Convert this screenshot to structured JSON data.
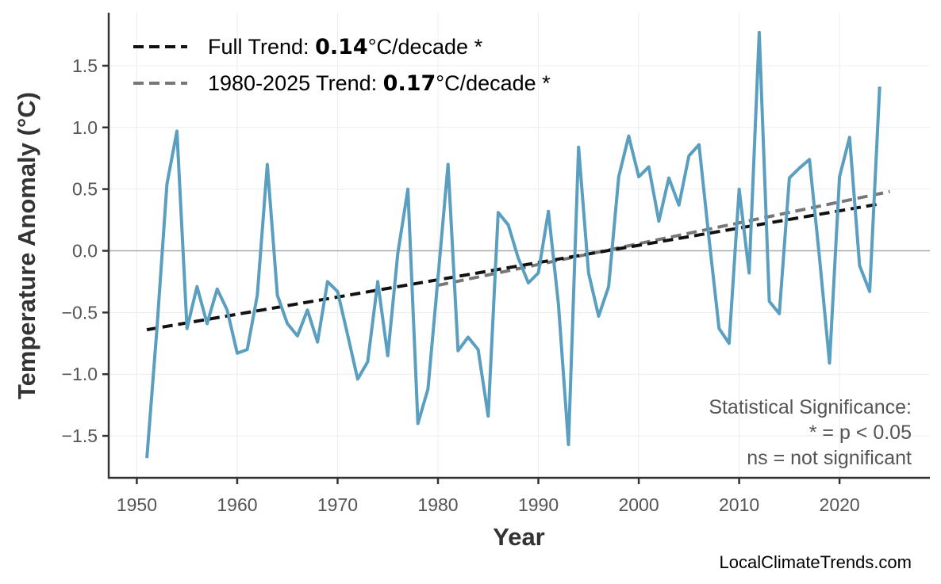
{
  "chart_data": {
    "type": "line",
    "xlabel": "Year",
    "ylabel": "Temperature Anomaly (°C)",
    "xlim": [
      1947.2,
      2029.0
    ],
    "ylim": [
      -1.84,
      1.93
    ],
    "grid": true,
    "legend_placement": "top-left",
    "x_ticks": [
      "1950",
      "1960",
      "1970",
      "1980",
      "1990",
      "2000",
      "2010",
      "2020"
    ],
    "y_ticks": [
      "1.5",
      "1.0",
      "0.5",
      "0.0",
      "−0.5",
      "−1.0",
      "−1.5"
    ],
    "colors": {
      "series": "#5a9fc0",
      "full_trend": "#111111",
      "recent_trend": "#777777",
      "zero_line": "#aaaaaa",
      "grid": "#ececec"
    },
    "series": [
      {
        "x": [
          1951,
          1952,
          1953,
          1954,
          1955,
          1956,
          1957,
          1958,
          1959,
          1960,
          1961,
          1962,
          1963,
          1964,
          1965,
          1966,
          1967,
          1968,
          1969,
          1970,
          1971,
          1972,
          1973,
          1974,
          1975,
          1976,
          1977,
          1978,
          1979,
          1980,
          1981,
          1982,
          1983,
          1984,
          1985,
          1986,
          1987,
          1988,
          1989,
          1990,
          1991,
          1992,
          1993,
          1994,
          1995,
          1996,
          1997,
          1998,
          1999,
          2000,
          2001,
          2002,
          2003,
          2004,
          2005,
          2006,
          2007,
          2008,
          2009,
          2010,
          2011,
          2012,
          2013,
          2014,
          2015,
          2016,
          2017,
          2018,
          2019,
          2020,
          2021,
          2022,
          2023,
          2024
        ],
        "values": [
          -1.68,
          -0.64,
          0.54,
          0.97,
          -0.63,
          -0.29,
          -0.59,
          -0.31,
          -0.48,
          -0.83,
          -0.8,
          -0.36,
          0.7,
          -0.36,
          -0.59,
          -0.69,
          -0.48,
          -0.74,
          -0.25,
          -0.33,
          -0.68,
          -1.04,
          -0.9,
          -0.25,
          -0.85,
          -0.02,
          0.5,
          -1.4,
          -1.12,
          -0.22,
          0.7,
          -0.81,
          -0.7,
          -0.8,
          -1.34,
          0.31,
          0.21,
          -0.06,
          -0.26,
          -0.18,
          0.32,
          -0.43,
          -1.57,
          0.84,
          -0.18,
          -0.53,
          -0.29,
          0.6,
          0.93,
          0.6,
          0.68,
          0.24,
          0.59,
          0.37,
          0.77,
          0.86,
          0.1,
          -0.63,
          -0.75,
          0.5,
          -0.18,
          1.77,
          -0.41,
          -0.51,
          0.59,
          0.67,
          0.74,
          -0.05,
          -0.91,
          0.6,
          0.92,
          -0.12,
          -0.33,
          1.33
        ]
      }
    ],
    "trends": [
      {
        "x": [
          1951,
          2024
        ],
        "values": [
          -0.64,
          0.38
        ],
        "style": "dashed"
      },
      {
        "x": [
          1980,
          2025
        ],
        "values": [
          -0.28,
          0.48
        ],
        "style": "dashed"
      }
    ],
    "legend": [
      {
        "prefix": "Full Trend: ",
        "value": "0.14",
        "suffix": "°C/decade *"
      },
      {
        "prefix": "1980-2025 Trend: ",
        "value": "0.17",
        "suffix": "°C/decade *"
      }
    ],
    "annotation": [
      "Statistical Significance:",
      "* = p < 0.05",
      "ns = not significant"
    ],
    "watermark": "LocalClimateTrends.com"
  }
}
